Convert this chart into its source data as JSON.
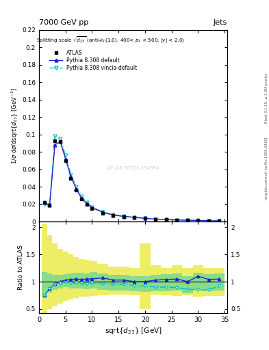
{
  "title_left": "7000 GeV pp",
  "title_right": "Jets",
  "right_label1": "Rivet 3.1.10, ≥ 3.3M events",
  "right_label2": "mcplots.cern.ch [arXiv:1306.3436]",
  "watermark": "ATLAS 38712.094564",
  "x_data": [
    1.0,
    2.0,
    3.0,
    4.0,
    5.0,
    6.0,
    7.0,
    8.0,
    9.0,
    10.0,
    12.0,
    14.0,
    16.0,
    18.0,
    20.0,
    22.0,
    24.0,
    26.0,
    28.0,
    30.0,
    32.0,
    34.0
  ],
  "x_widths": [
    1.0,
    1.0,
    1.0,
    1.0,
    1.0,
    1.0,
    1.0,
    1.0,
    1.0,
    1.0,
    2.0,
    2.0,
    2.0,
    2.0,
    2.0,
    2.0,
    2.0,
    2.0,
    2.0,
    2.0,
    2.0,
    2.0
  ],
  "atlas_y": [
    0.022,
    0.019,
    0.093,
    0.092,
    0.07,
    0.05,
    0.036,
    0.026,
    0.02,
    0.015,
    0.01,
    0.0075,
    0.006,
    0.005,
    0.004,
    0.003,
    0.0025,
    0.002,
    0.0018,
    0.0015,
    0.0013,
    0.001
  ],
  "pythia_y": [
    0.022,
    0.019,
    0.088,
    0.092,
    0.072,
    0.052,
    0.038,
    0.027,
    0.021,
    0.016,
    0.011,
    0.0077,
    0.0062,
    0.005,
    0.004,
    0.0031,
    0.0026,
    0.0021,
    0.0018,
    0.0016,
    0.00135,
    0.00105
  ],
  "vincia_y": [
    0.02,
    0.019,
    0.098,
    0.095,
    0.076,
    0.054,
    0.04,
    0.029,
    0.022,
    0.017,
    0.011,
    0.008,
    0.0064,
    0.0052,
    0.0042,
    0.0032,
    0.0027,
    0.0022,
    0.0019,
    0.0016,
    0.00135,
    0.00105
  ],
  "ratio_pythia": [
    0.75,
    0.87,
    0.96,
    1.0,
    1.03,
    1.04,
    1.05,
    1.04,
    1.05,
    1.05,
    1.07,
    1.03,
    1.03,
    1.0,
    1.0,
    1.03,
    1.04,
    1.05,
    1.0,
    1.1,
    1.04,
    1.05
  ],
  "ratio_vincia": [
    0.83,
    0.95,
    1.05,
    1.03,
    1.08,
    1.08,
    1.1,
    1.11,
    1.1,
    1.13,
    1.1,
    1.07,
    1.07,
    1.04,
    1.05,
    1.07,
    1.08,
    1.1,
    1.06,
    1.07,
    1.04,
    1.05
  ],
  "ratio_vincia_line": [
    0.75,
    0.88,
    0.95,
    0.98,
    0.99,
    0.98,
    0.97,
    0.97,
    0.96,
    0.98,
    0.96,
    0.95,
    0.95,
    0.93,
    0.92,
    0.9,
    0.9,
    0.89,
    0.86,
    0.85,
    0.85,
    0.92
  ],
  "green_upper": [
    1.18,
    1.15,
    1.13,
    1.12,
    1.14,
    1.15,
    1.17,
    1.16,
    1.15,
    1.18,
    1.15,
    1.12,
    1.12,
    1.1,
    1.1,
    1.13,
    1.14,
    1.15,
    1.1,
    1.17,
    1.14,
    1.15
  ],
  "green_lower": [
    0.72,
    0.8,
    0.85,
    0.88,
    0.9,
    0.88,
    0.87,
    0.87,
    0.86,
    0.87,
    0.85,
    0.84,
    0.84,
    0.82,
    0.81,
    0.82,
    0.83,
    0.84,
    0.79,
    0.86,
    0.83,
    0.84
  ],
  "yellow_upper": [
    2.05,
    1.85,
    1.7,
    1.6,
    1.55,
    1.5,
    1.45,
    1.42,
    1.4,
    1.38,
    1.33,
    1.28,
    1.28,
    1.25,
    1.7,
    1.3,
    1.25,
    1.3,
    1.25,
    1.3,
    1.25,
    1.25
  ],
  "yellow_lower": [
    0.42,
    0.5,
    0.55,
    0.6,
    0.65,
    0.68,
    0.7,
    0.72,
    0.73,
    0.74,
    0.75,
    0.76,
    0.76,
    0.75,
    0.5,
    0.76,
    0.75,
    0.74,
    0.75,
    0.73,
    0.74,
    0.74
  ],
  "ylim_main": [
    0.0,
    0.22
  ],
  "ylim_ratio": [
    0.42,
    2.1
  ],
  "xlim": [
    0.0,
    35.5
  ],
  "color_atlas": "#000000",
  "color_pythia": "#2222cc",
  "color_vincia": "#00bbcc",
  "color_green": "#88dd88",
  "color_yellow": "#eeee66",
  "bg_color": "#ffffff"
}
